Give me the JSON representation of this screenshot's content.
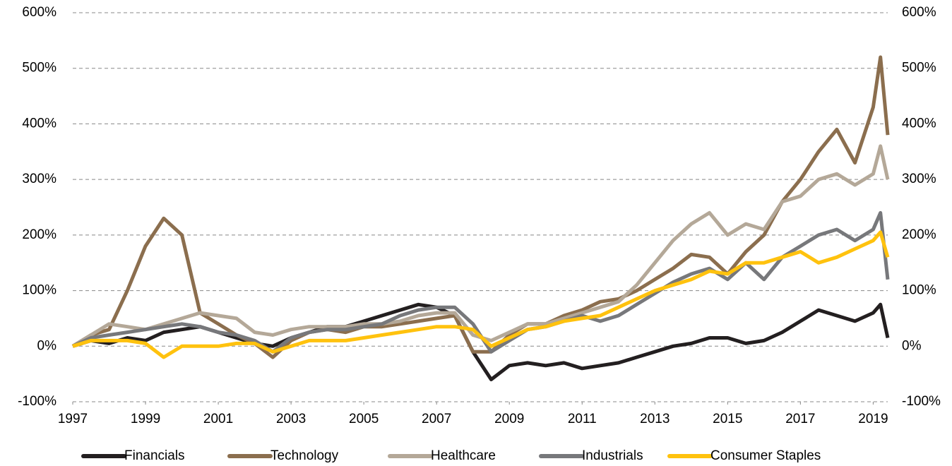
{
  "chart_data": {
    "type": "line",
    "x": [
      1997,
      1997.5,
      1998,
      1998.5,
      1999,
      1999.5,
      2000,
      2000.5,
      2001,
      2001.5,
      2002,
      2002.5,
      2003,
      2003.5,
      2004,
      2004.5,
      2005,
      2005.5,
      2006,
      2006.5,
      2007,
      2007.5,
      2008,
      2008.5,
      2009,
      2009.5,
      2010,
      2010.5,
      2011,
      2011.5,
      2012,
      2012.5,
      2013,
      2013.5,
      2014,
      2014.5,
      2015,
      2015.5,
      2016,
      2016.5,
      2017,
      2017.5,
      2018,
      2018.5,
      2019,
      2019.2,
      2019.4
    ],
    "series": [
      {
        "name": "Financials",
        "color": "#231f20",
        "values": [
          0,
          10,
          5,
          15,
          10,
          25,
          30,
          35,
          25,
          15,
          5,
          0,
          15,
          25,
          35,
          35,
          45,
          55,
          65,
          75,
          70,
          55,
          -10,
          -60,
          -35,
          -30,
          -35,
          -30,
          -40,
          -35,
          -30,
          -20,
          -10,
          0,
          5,
          15,
          15,
          5,
          10,
          25,
          45,
          65,
          55,
          45,
          60,
          75,
          15
        ]
      },
      {
        "name": "Technology",
        "color": "#8b6e4e",
        "values": [
          0,
          20,
          30,
          100,
          180,
          230,
          200,
          60,
          40,
          20,
          5,
          -20,
          10,
          25,
          30,
          25,
          35,
          35,
          40,
          45,
          50,
          55,
          -10,
          -10,
          20,
          40,
          40,
          55,
          65,
          80,
          85,
          100,
          120,
          140,
          165,
          160,
          130,
          170,
          200,
          260,
          300,
          350,
          390,
          330,
          430,
          520,
          380
        ]
      },
      {
        "name": "Healthcare",
        "color": "#b4a898",
        "values": [
          0,
          20,
          40,
          35,
          30,
          40,
          50,
          60,
          55,
          50,
          25,
          20,
          30,
          35,
          35,
          35,
          40,
          40,
          45,
          55,
          60,
          60,
          20,
          10,
          25,
          40,
          40,
          50,
          60,
          70,
          80,
          110,
          150,
          190,
          220,
          240,
          200,
          220,
          210,
          260,
          270,
          300,
          310,
          290,
          310,
          360,
          300
        ]
      },
      {
        "name": "Industrials",
        "color": "#77787b",
        "values": [
          0,
          15,
          20,
          25,
          30,
          35,
          40,
          35,
          25,
          20,
          10,
          -10,
          15,
          25,
          30,
          30,
          35,
          40,
          55,
          65,
          70,
          70,
          40,
          -10,
          10,
          30,
          35,
          45,
          55,
          45,
          55,
          75,
          95,
          115,
          130,
          140,
          120,
          150,
          120,
          160,
          180,
          200,
          210,
          190,
          210,
          240,
          120
        ]
      },
      {
        "name": "Consumer Staples",
        "color": "#ffc20e",
        "values": [
          0,
          10,
          10,
          10,
          5,
          -20,
          0,
          0,
          0,
          5,
          5,
          -10,
          0,
          10,
          10,
          10,
          15,
          20,
          25,
          30,
          35,
          35,
          30,
          0,
          15,
          30,
          35,
          45,
          50,
          55,
          70,
          85,
          100,
          110,
          120,
          135,
          130,
          150,
          150,
          160,
          170,
          150,
          160,
          175,
          190,
          205,
          160
        ]
      }
    ],
    "xlim": [
      1997,
      2019.4
    ],
    "xticks": [
      1997,
      1999,
      2001,
      2003,
      2005,
      2007,
      2009,
      2011,
      2013,
      2015,
      2017,
      2019
    ],
    "ylim": [
      -100,
      600
    ],
    "yticks": [
      {
        "value": -100,
        "label": "-100%"
      },
      {
        "value": 0,
        "label": "0%"
      },
      {
        "value": 100,
        "label": "100%"
      },
      {
        "value": 200,
        "label": "200%"
      },
      {
        "value": 300,
        "label": "300%"
      },
      {
        "value": 400,
        "label": "400%"
      },
      {
        "value": 500,
        "label": "500%"
      },
      {
        "value": 600,
        "label": "600%"
      }
    ],
    "y2lim": [
      -100,
      600
    ],
    "y2ticks": [
      {
        "value": -100,
        "label": "-100%"
      },
      {
        "value": 0,
        "label": "0%"
      },
      {
        "value": 100,
        "label": "100%"
      },
      {
        "value": 200,
        "label": "200%"
      },
      {
        "value": 300,
        "label": "300%"
      },
      {
        "value": 400,
        "label": "400%"
      },
      {
        "value": 500,
        "label": "500%"
      },
      {
        "value": 600,
        "label": "600%"
      }
    ],
    "grid": true,
    "legend": "bottom"
  }
}
